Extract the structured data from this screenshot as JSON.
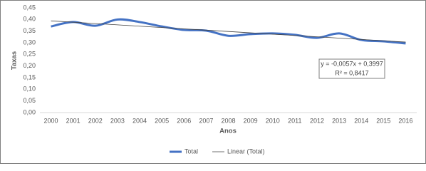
{
  "chart_data": {
    "type": "line",
    "x_label": "Anos",
    "y_label": "Taxas",
    "categories": [
      "2000",
      "2001",
      "2002",
      "2003",
      "2004",
      "2005",
      "2006",
      "2007",
      "2008",
      "2009",
      "2010",
      "2011",
      "2012",
      "2013",
      "2014",
      "2015",
      "2016"
    ],
    "series": [
      {
        "name": "Total",
        "color": "#4472c4",
        "values": [
          0.37,
          0.389,
          0.373,
          0.4,
          0.389,
          0.37,
          0.355,
          0.352,
          0.33,
          0.337,
          0.34,
          0.334,
          0.321,
          0.34,
          0.312,
          0.306,
          0.297
        ]
      },
      {
        "name": "Linear (Total)",
        "color": "#404040",
        "values": [
          0.394,
          0.3883,
          0.3826,
          0.3769,
          0.3712,
          0.3655,
          0.3598,
          0.3541,
          0.3484,
          0.3427,
          0.337,
          0.3313,
          0.3256,
          0.3199,
          0.3142,
          0.3085,
          0.3028
        ]
      }
    ],
    "ylim": [
      0,
      0.45
    ],
    "yticks": [
      {
        "value": 0,
        "label": "0,00"
      },
      {
        "value": 0.05,
        "label": "0,05"
      },
      {
        "value": 0.1,
        "label": "0,10"
      },
      {
        "value": 0.15,
        "label": "0,15"
      },
      {
        "value": 0.2,
        "label": "0,20"
      },
      {
        "value": 0.25,
        "label": "0,25"
      },
      {
        "value": 0.3,
        "label": "0,30"
      },
      {
        "value": 0.35,
        "label": "0,35"
      },
      {
        "value": 0.4,
        "label": "0,40"
      },
      {
        "value": 0.45,
        "label": "0,45"
      }
    ],
    "annotations": [
      "y = -0,0057x + 0,3997",
      "R² = 0,8417"
    ],
    "legend": "bottom"
  }
}
